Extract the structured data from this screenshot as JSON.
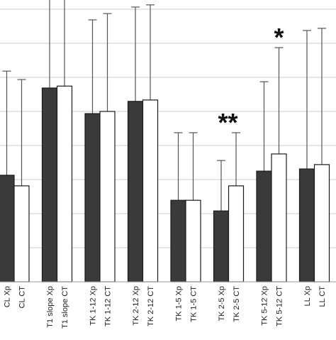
{
  "chart_data": {
    "type": "bar",
    "title": "",
    "xlabel": "",
    "ylabel": "",
    "grid": true,
    "ylim": [
      0,
      1
    ],
    "bar_colors": {
      "Xp": "#3a3a3a",
      "CT": "#ffffff"
    },
    "edge_color": "#1a1a1a",
    "grid_color": "#cccccc",
    "categories": [
      "CL Xp",
      "CL CT",
      "T1 slope Xp",
      "T1 slope CT",
      "TK 1-12 Xp",
      "TK 1-12 CT",
      "TK 2-12 Xp",
      "TK 2-12 CT",
      "TK 1-5 Xp",
      "TK 1-5 CT",
      "TK 2-5 Xp",
      "TK 2-5 CT",
      "TK 5-12 Xp",
      "TK 5-12 CT",
      "LL Xp",
      "LL CT"
    ],
    "series_type": [
      "Xp",
      "CT",
      "Xp",
      "CT",
      "Xp",
      "CT",
      "Xp",
      "CT",
      "Xp",
      "CT",
      "Xp",
      "CT",
      "Xp",
      "CT",
      "Xp",
      "CT"
    ],
    "values": [
      0.391,
      0.352,
      0.711,
      0.718,
      0.617,
      0.625,
      0.662,
      0.667,
      0.299,
      0.299,
      0.26,
      0.352,
      0.406,
      0.469,
      0.414,
      0.43
    ],
    "error_upper": [
      0.773,
      0.742,
      1.133,
      1.133,
      0.961,
      0.984,
      1.008,
      1.016,
      0.547,
      0.547,
      0.445,
      0.547,
      0.734,
      0.859,
      0.922,
      0.93
    ],
    "annotations": [
      {
        "text": "**",
        "category": "TK 2-5 CT"
      },
      {
        "text": "*",
        "category": "TK 5-12 CT"
      }
    ]
  }
}
